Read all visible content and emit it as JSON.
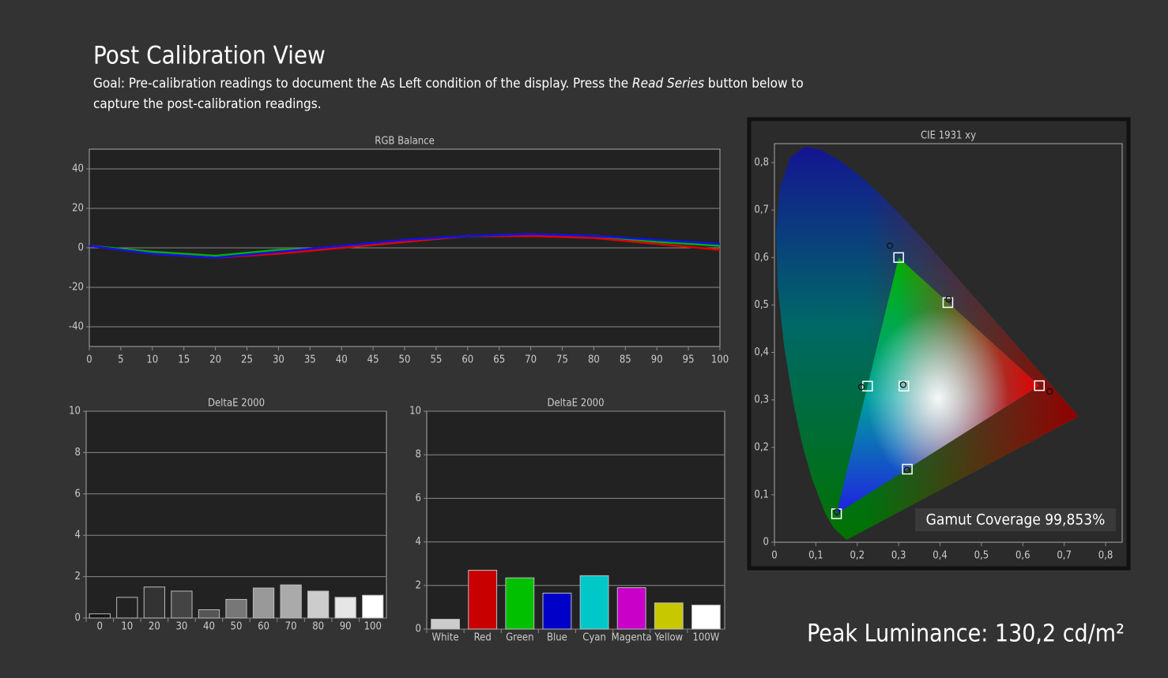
{
  "header": {
    "title": "Post Calibration View",
    "goal_start": "Goal: Pre-calibration readings to document the As Left condition of the display. Press the ",
    "goal_emphasis": "Read Series",
    "goal_end": " button below to",
    "goal_line_2": "capture the post-calibration readings."
  },
  "peak_luminance": "Peak Luminance: 130,2 cd/m²",
  "chart_data": [
    {
      "type": "line",
      "title": "RGB Balance",
      "x": [
        0,
        10,
        20,
        30,
        40,
        50,
        60,
        70,
        80,
        90,
        100
      ],
      "series": [
        {
          "color": "#00b000",
          "values": [
            1,
            -2,
            -4,
            -1,
            0,
            3,
            6,
            6,
            6,
            3,
            1
          ]
        },
        {
          "color": "#e00000",
          "values": [
            1,
            -3,
            -5,
            -3,
            0,
            3,
            6,
            6,
            5,
            2,
            -1
          ]
        },
        {
          "color": "#1010f0",
          "values": [
            1,
            -3,
            -5,
            -2,
            1,
            4,
            6,
            7,
            6,
            4,
            2
          ]
        }
      ],
      "xlim": [
        0,
        100
      ],
      "xticks": [
        0,
        5,
        10,
        15,
        20,
        25,
        30,
        35,
        40,
        45,
        50,
        55,
        60,
        65,
        70,
        75,
        80,
        85,
        90,
        95,
        100
      ],
      "ylim": [
        -50,
        50
      ],
      "yticks": [
        -40,
        -20,
        0,
        20,
        40
      ],
      "grid": true
    },
    {
      "type": "bar",
      "title": "DeltaE 2000",
      "categories": [
        "0",
        "10",
        "20",
        "30",
        "40",
        "50",
        "60",
        "70",
        "80",
        "90",
        "100"
      ],
      "values": [
        0.2,
        1.0,
        1.5,
        1.3,
        0.4,
        0.9,
        1.45,
        1.6,
        1.3,
        1.0,
        1.1
      ],
      "colors": [
        "#111111",
        "#222222",
        "#333333",
        "#444444",
        "#555555",
        "#777777",
        "#999999",
        "#aaaaaa",
        "#cccccc",
        "#e6e6e6",
        "#ffffff"
      ],
      "ylim": [
        0,
        10
      ],
      "yticks": [
        0,
        2,
        4,
        6,
        8,
        10
      ],
      "grid": true
    },
    {
      "type": "bar",
      "title": "DeltaE 2000",
      "categories": [
        "White",
        "Red",
        "Green",
        "Blue",
        "Cyan",
        "Magenta",
        "Yellow",
        "100W"
      ],
      "values": [
        0.45,
        2.7,
        2.35,
        1.65,
        2.45,
        1.9,
        1.2,
        1.1
      ],
      "colors": [
        "#cccccc",
        "#c80000",
        "#00c000",
        "#0000c8",
        "#00c8c8",
        "#c800c8",
        "#c8c800",
        "#ffffff"
      ],
      "ylim": [
        0,
        10
      ],
      "yticks": [
        0,
        2,
        4,
        6,
        8,
        10
      ],
      "grid": true
    },
    {
      "type": "scatter",
      "title": "CIE 1931 xy",
      "annotation": "Gamut Coverage 99,853%",
      "series": [
        {
          "color": "#ffffff",
          "marker": "square",
          "x": [
            0.64,
            0.3,
            0.15,
            0.3127,
            0.225,
            0.321,
            0.419
          ],
          "y": [
            0.33,
            0.6,
            0.06,
            0.329,
            0.329,
            0.154,
            0.505
          ]
        },
        {
          "color": "#111111",
          "marker": "circle",
          "x": [
            0.665,
            0.279,
            0.151,
            0.311,
            0.21,
            0.32,
            0.421
          ],
          "y": [
            0.318,
            0.625,
            0.064,
            0.332,
            0.327,
            0.152,
            0.512
          ]
        }
      ],
      "xlim": [
        0,
        0.84
      ],
      "ylim": [
        0,
        0.84
      ],
      "xticks": [
        0,
        {
          "value": 0.1,
          "label": "0,1"
        },
        {
          "value": 0.2,
          "label": "0,2"
        },
        {
          "value": 0.3,
          "label": "0,3"
        },
        {
          "value": 0.4,
          "label": "0,4"
        },
        {
          "value": 0.5,
          "label": "0,5"
        },
        {
          "value": 0.6,
          "label": "0,6"
        },
        {
          "value": 0.7,
          "label": "0,7"
        },
        {
          "value": 0.8,
          "label": "0,8"
        }
      ],
      "yticks": [
        0,
        {
          "value": 0.1,
          "label": "0,1"
        },
        {
          "value": 0.2,
          "label": "0,2"
        },
        {
          "value": 0.3,
          "label": "0,3"
        },
        {
          "value": 0.4,
          "label": "0,4"
        },
        {
          "value": 0.5,
          "label": "0,5"
        },
        {
          "value": 0.6,
          "label": "0,6"
        },
        {
          "value": 0.7,
          "label": "0,7"
        },
        {
          "value": 0.8,
          "label": "0,8"
        }
      ],
      "grid": false
    }
  ]
}
